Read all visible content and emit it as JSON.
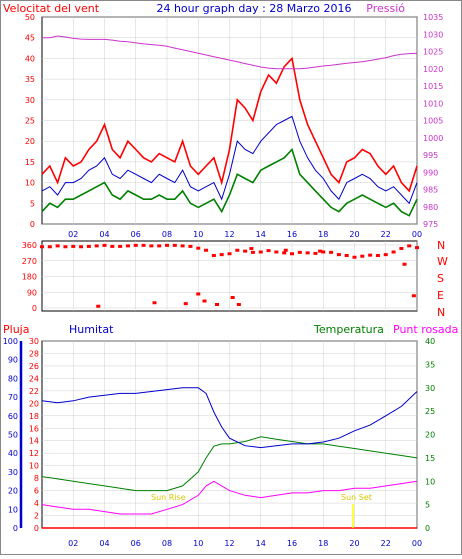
{
  "header": {
    "left_label": "Velocitat del vent",
    "title": "24 hour graph day : 28 Marzo 2016",
    "right_label": "Pressió"
  },
  "colors": {
    "gust": "#ff0000",
    "avg": "#0000cc",
    "min": "#008000",
    "pressure": "#cc33cc",
    "direction": "#ff0000",
    "humidity": "#0000cc",
    "temperature": "#008000",
    "dewpoint": "#ff00ff",
    "rain": "#ff0000",
    "sun": "#ffff00",
    "grid": "#cfcfcf"
  },
  "labels": {
    "dir_labels": [
      "N",
      "W",
      "S",
      "E",
      "N"
    ],
    "pluja": "Pluja",
    "humitat": "Humitat",
    "temperatura": "Temperatura",
    "punt_rosada": "Punt rosada",
    "sun_rise": "Sun Rise",
    "sun_set": "Sun Set"
  },
  "chart_data": [
    {
      "type": "line",
      "name": "wind-pressure",
      "x_ticks": [
        "02",
        "04",
        "06",
        "08",
        "10",
        "12",
        "14",
        "16",
        "18",
        "20",
        "22",
        "00"
      ],
      "ylim_left": [
        0,
        50
      ],
      "yticks_left": [
        0,
        5,
        10,
        15,
        20,
        25,
        30,
        35,
        40,
        45,
        50
      ],
      "ylim_right": [
        975,
        1035
      ],
      "yticks_right": [
        975,
        980,
        985,
        990,
        995,
        1000,
        1005,
        1010,
        1015,
        1020,
        1025,
        1030,
        1035
      ],
      "x": [
        0,
        0.5,
        1,
        1.5,
        2,
        2.5,
        3,
        3.5,
        4,
        4.5,
        5,
        5.5,
        6,
        6.5,
        7,
        7.5,
        8,
        8.5,
        9,
        9.5,
        10,
        10.5,
        11,
        11.5,
        12,
        12.5,
        13,
        13.5,
        14,
        14.5,
        15,
        15.5,
        16,
        16.5,
        17,
        17.5,
        18,
        18.5,
        19,
        19.5,
        20,
        20.5,
        21,
        21.5,
        22,
        22.5,
        23,
        23.5,
        24
      ],
      "series": [
        {
          "key": "gust",
          "values": [
            12,
            14,
            10,
            16,
            14,
            15,
            18,
            20,
            24,
            18,
            16,
            20,
            18,
            16,
            15,
            17,
            16,
            15,
            20,
            14,
            12,
            14,
            16,
            10,
            18,
            30,
            28,
            25,
            32,
            36,
            34,
            38,
            40,
            30,
            24,
            20,
            16,
            12,
            10,
            15,
            16,
            18,
            17,
            14,
            12,
            14,
            10,
            8,
            14
          ]
        },
        {
          "key": "avg",
          "values": [
            8,
            9,
            7,
            10,
            10,
            11,
            13,
            14,
            16,
            12,
            11,
            13,
            12,
            11,
            10,
            12,
            11,
            10,
            13,
            9,
            8,
            9,
            10,
            6,
            12,
            20,
            18,
            17,
            20,
            22,
            24,
            25,
            26,
            20,
            16,
            13,
            11,
            8,
            6,
            10,
            11,
            12,
            11,
            9,
            8,
            9,
            7,
            5,
            10
          ]
        },
        {
          "key": "min",
          "values": [
            3,
            5,
            4,
            6,
            6,
            7,
            8,
            9,
            10,
            7,
            6,
            8,
            7,
            6,
            6,
            7,
            6,
            6,
            8,
            5,
            4,
            5,
            6,
            3,
            7,
            12,
            11,
            10,
            13,
            14,
            15,
            16,
            18,
            12,
            10,
            8,
            6,
            4,
            3,
            5,
            6,
            7,
            6,
            5,
            4,
            5,
            3,
            2,
            6
          ]
        },
        {
          "key": "pressure",
          "values": [
            1029.0,
            1029.0,
            1029.5,
            1029.2,
            1028.8,
            1028.6,
            1028.5,
            1028.5,
            1028.5,
            1028.3,
            1028.0,
            1027.8,
            1027.5,
            1027.2,
            1027.0,
            1026.8,
            1026.5,
            1026.0,
            1025.5,
            1025.0,
            1024.5,
            1024.0,
            1023.5,
            1023.0,
            1022.5,
            1022.0,
            1021.5,
            1021.0,
            1020.5,
            1020.2,
            1020.0,
            1020.0,
            1020.0,
            1020.0,
            1020.2,
            1020.5,
            1020.8,
            1021.0,
            1021.3,
            1021.6,
            1021.8,
            1022.0,
            1022.4,
            1022.8,
            1023.2,
            1023.8,
            1024.2,
            1024.4,
            1024.5
          ]
        }
      ]
    },
    {
      "type": "scatter",
      "name": "wind-direction",
      "ylim": [
        0,
        360
      ],
      "yticks": [
        0,
        90,
        180,
        270,
        360
      ],
      "x": [
        0.0,
        0.5,
        1.0,
        1.5,
        2.0,
        2.5,
        3.0,
        3.5,
        4.0,
        4.5,
        5.0,
        5.5,
        6.0,
        6.5,
        7.0,
        7.5,
        8.0,
        8.5,
        9.0,
        9.5,
        10.0,
        10.5,
        11.0,
        11.5,
        12.0,
        12.5,
        13.0,
        13.5,
        14.0,
        14.5,
        15.0,
        15.5,
        16.0,
        16.5,
        17.0,
        17.5,
        18.0,
        18.5,
        19.0,
        19.5,
        20.0,
        20.5,
        21.0,
        21.5,
        22.0,
        22.5,
        23.0,
        23.5,
        24.0,
        3.6,
        7.2,
        9.2,
        10.0,
        10.4,
        11.2,
        12.2,
        12.6,
        13.4,
        15.6,
        17.8,
        23.2,
        23.8
      ],
      "values": [
        350,
        350,
        355,
        350,
        352,
        350,
        352,
        355,
        358,
        352,
        352,
        355,
        358,
        358,
        355,
        355,
        358,
        358,
        355,
        352,
        342,
        330,
        300,
        305,
        310,
        330,
        325,
        318,
        320,
        328,
        320,
        315,
        310,
        318,
        315,
        312,
        320,
        318,
        305,
        300,
        290,
        296,
        302,
        300,
        305,
        320,
        340,
        355,
        345,
        10,
        30,
        25,
        80,
        40,
        20,
        60,
        20,
        340,
        330,
        325,
        250,
        70
      ]
    },
    {
      "type": "line",
      "name": "humidity-temperature",
      "ylim_humidity": [
        0,
        100
      ],
      "yticks_humidity": [
        0,
        10,
        20,
        30,
        40,
        50,
        60,
        70,
        80,
        90,
        100
      ],
      "ylim_rain": [
        0,
        30
      ],
      "yticks_rain": [
        0,
        2,
        4,
        6,
        8,
        10,
        12,
        14,
        16,
        18,
        20,
        22,
        24,
        26,
        28,
        30
      ],
      "ylim_temp": [
        0,
        40
      ],
      "yticks_temp": [
        0,
        5,
        10,
        15,
        20,
        25,
        30,
        35,
        40
      ],
      "x": [
        0,
        1,
        2,
        3,
        4,
        5,
        6,
        7,
        8,
        9,
        10,
        10.5,
        11,
        11.5,
        12,
        13,
        14,
        15,
        16,
        17,
        18,
        19,
        20,
        21,
        22,
        23,
        24
      ],
      "series": [
        {
          "key": "humidity",
          "values": [
            68,
            67,
            68,
            70,
            71,
            72,
            72,
            73,
            74,
            75,
            75,
            72,
            62,
            54,
            48,
            44,
            43,
            44,
            45,
            45,
            46,
            48,
            52,
            55,
            60,
            65,
            73
          ]
        },
        {
          "key": "temperature",
          "values": [
            11,
            10.5,
            10,
            9.5,
            9,
            8.5,
            8,
            8,
            8,
            9,
            12,
            15,
            17.5,
            18,
            18,
            18.5,
            19.5,
            19,
            18.5,
            18,
            18,
            17.5,
            17,
            16.5,
            16,
            15.5,
            15
          ]
        },
        {
          "key": "dewpoint",
          "values": [
            5,
            4.5,
            4,
            4,
            3.5,
            3,
            3,
            3,
            4,
            5,
            7,
            9,
            10,
            9,
            8,
            7,
            6.5,
            7,
            7.5,
            7.5,
            8,
            8,
            8.5,
            8.5,
            9,
            9.5,
            10
          ]
        },
        {
          "key": "rain",
          "values": [
            0,
            0,
            0,
            0,
            0,
            0,
            0,
            0,
            0,
            0,
            0,
            0,
            0,
            0,
            0,
            0,
            0,
            0,
            0,
            0,
            0,
            0,
            0,
            0,
            0,
            0,
            0
          ]
        }
      ]
    }
  ]
}
